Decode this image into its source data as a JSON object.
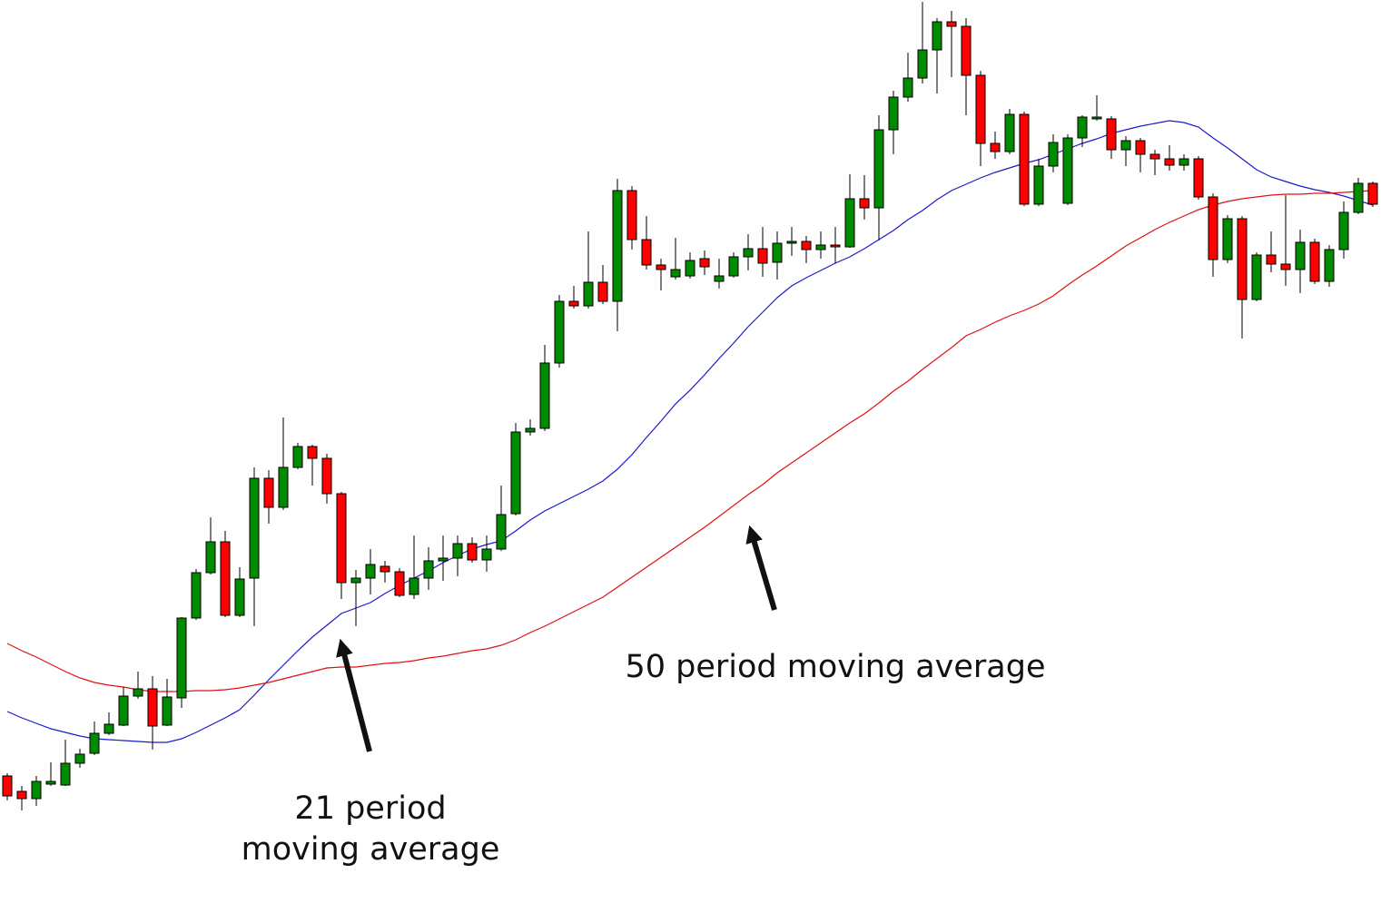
{
  "chart_data": {
    "type": "candlestick",
    "ylim": [
      0,
      995
    ],
    "up_color": "#008a00",
    "down_color": "#ff0000",
    "open": [
      140,
      123,
      115,
      131,
      130,
      154,
      165,
      187,
      196,
      228,
      236,
      196,
      226,
      314,
      364,
      398,
      317,
      358,
      468,
      436,
      480,
      503,
      490,
      451,
      353,
      358,
      371,
      365,
      340,
      358,
      377,
      380,
      396,
      378,
      390,
      429,
      519,
      523,
      595,
      663,
      658,
      684,
      663,
      785,
      731,
      703,
      690,
      691,
      710,
      685,
      691,
      712,
      721,
      706,
      727,
      729,
      720,
      725,
      723,
      776,
      766,
      852,
      888,
      909,
      940,
      971,
      966,
      912,
      837,
      828,
      869,
      770,
      812,
      771,
      843,
      864,
      864,
      830,
      840,
      825,
      820,
      813,
      820,
      778,
      709,
      754,
      665,
      714,
      704,
      698,
      728,
      685,
      720,
      761,
      793
    ],
    "high": [
      143,
      129,
      140,
      155,
      180,
      170,
      200,
      210,
      238,
      255,
      250,
      247,
      315,
      368,
      425,
      410,
      370,
      480,
      477,
      535,
      507,
      505,
      495,
      453,
      367,
      390,
      377,
      369,
      405,
      392,
      405,
      405,
      403,
      405,
      460,
      529,
      533,
      615,
      670,
      680,
      740,
      703,
      798,
      790,
      757,
      710,
      733,
      717,
      719,
      710,
      717,
      737,
      745,
      740,
      745,
      735,
      740,
      745,
      803,
      802,
      868,
      895,
      937,
      993,
      975,
      983,
      975,
      917,
      850,
      875,
      872,
      820,
      847,
      847,
      868,
      890,
      867,
      845,
      843,
      830,
      835,
      825,
      823,
      782,
      758,
      757,
      717,
      740,
      780,
      742,
      732,
      725,
      773,
      799,
      795
    ],
    "low": [
      113,
      102,
      107,
      129,
      129,
      149,
      163,
      185,
      195,
      225,
      169,
      195,
      215,
      312,
      362,
      315,
      315,
      305,
      418,
      433,
      478,
      460,
      440,
      335,
      305,
      340,
      353,
      337,
      335,
      345,
      355,
      360,
      375,
      365,
      388,
      427,
      515,
      520,
      590,
      655,
      655,
      660,
      630,
      720,
      698,
      675,
      687,
      688,
      692,
      677,
      689,
      697,
      690,
      687,
      713,
      705,
      710,
      705,
      722,
      753,
      730,
      825,
      883,
      903,
      892,
      910,
      868,
      812,
      820,
      825,
      768,
      768,
      805,
      769,
      833,
      862,
      820,
      812,
      805,
      802,
      807,
      807,
      775,
      690,
      705,
      622,
      663,
      695,
      680,
      672,
      682,
      679,
      710,
      759,
      767
    ],
    "close": [
      118,
      115,
      134,
      134,
      154,
      164,
      187,
      197,
      228,
      236,
      195,
      227,
      314,
      364,
      398,
      317,
      357,
      468,
      436,
      480,
      503,
      490,
      451,
      353,
      358,
      373,
      365,
      339,
      358,
      377,
      380,
      396,
      378,
      390,
      428,
      519,
      523,
      595,
      663,
      658,
      684,
      663,
      785,
      731,
      703,
      698,
      698,
      708,
      701,
      691,
      712,
      721,
      705,
      727,
      729,
      720,
      725,
      723,
      776,
      766,
      852,
      888,
      909,
      940,
      971,
      966,
      912,
      837,
      828,
      869,
      770,
      812,
      838,
      843,
      866,
      866,
      830,
      840,
      825,
      820,
      813,
      820,
      778,
      709,
      754,
      665,
      714,
      704,
      698,
      728,
      685,
      720,
      761,
      793,
      770
    ],
    "series": [
      {
        "color": "#1a1acc",
        "values": [
          211,
          204,
          198,
          192,
          188,
          184,
          181,
          180,
          179,
          178,
          177,
          177,
          181,
          188,
          196,
          204,
          213,
          229,
          246,
          262,
          278,
          293,
          306,
          319,
          325,
          331,
          341,
          350,
          358,
          366,
          375,
          383,
          390,
          395,
          399,
          410,
          422,
          432,
          440,
          448,
          456,
          465,
          478,
          494,
          513,
          531,
          550,
          565,
          582,
          600,
          617,
          635,
          651,
          667,
          680,
          689,
          697,
          705,
          712,
          721,
          731,
          741,
          753,
          763,
          775,
          785,
          792,
          799,
          805,
          810,
          815,
          819,
          825,
          831,
          837,
          842,
          848,
          852,
          856,
          859,
          862,
          860,
          855,
          843,
          832,
          820,
          808,
          800,
          795,
          790,
          786,
          783,
          779,
          774,
          769
        ]
      },
      {
        "color": "#e01010",
        "values": [
          286,
          278,
          271,
          263,
          255,
          248,
          243,
          240,
          238,
          235,
          233,
          233,
          233,
          234,
          234,
          235,
          237,
          240,
          243,
          247,
          251,
          255,
          259,
          260,
          260,
          262,
          264,
          265,
          267,
          270,
          272,
          275,
          278,
          280,
          284,
          290,
          298,
          305,
          313,
          321,
          329,
          337,
          348,
          359,
          370,
          381,
          392,
          403,
          414,
          426,
          438,
          450,
          461,
          474,
          485,
          496,
          507,
          518,
          529,
          539,
          551,
          564,
          575,
          588,
          600,
          612,
          625,
          632,
          640,
          647,
          653,
          660,
          669,
          681,
          692,
          702,
          713,
          724,
          733,
          742,
          750,
          757,
          764,
          769,
          773,
          776,
          778,
          780,
          781,
          781,
          782,
          782,
          783,
          784,
          785
        ]
      }
    ],
    "annotations": [
      {
        "text": [
          "21 period",
          "moving average"
        ]
      },
      {
        "text": [
          "50 period moving average"
        ]
      }
    ]
  }
}
